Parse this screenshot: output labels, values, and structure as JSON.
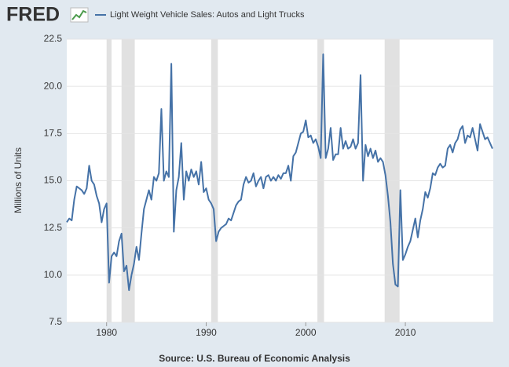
{
  "logo": "FRED",
  "chart_data": {
    "type": "line",
    "y_label": "Millions of Units",
    "source": "Source: U.S. Bureau of Economic Analysis",
    "xlim": [
      1976,
      2018.83
    ],
    "xticks": [
      1980,
      1990,
      2000,
      2010
    ],
    "ylim": [
      7.5,
      22.5
    ],
    "yticks": [
      {
        "value": 7.5,
        "label": "7.5"
      },
      {
        "value": 10,
        "label": "10.0"
      },
      {
        "value": 12.5,
        "label": "12.5"
      },
      {
        "value": 15,
        "label": "15.0"
      },
      {
        "value": 17.5,
        "label": "17.5"
      },
      {
        "value": 20,
        "label": "20.0"
      },
      {
        "value": 22.5,
        "label": "22.5"
      }
    ],
    "grid": true,
    "recessions": [
      [
        1980.0,
        1980.5
      ],
      [
        1981.5,
        1982.83
      ],
      [
        1990.5,
        1991.17
      ],
      [
        2001.17,
        2001.83
      ],
      [
        2007.92,
        2009.42
      ]
    ],
    "x": [
      1976,
      1976.25,
      1976.5,
      1976.75,
      1977,
      1977.25,
      1977.5,
      1977.75,
      1978,
      1978.25,
      1978.5,
      1978.75,
      1979,
      1979.25,
      1979.5,
      1979.75,
      1980,
      1980.25,
      1980.5,
      1980.75,
      1981,
      1981.25,
      1981.5,
      1981.75,
      1982,
      1982.25,
      1982.5,
      1982.75,
      1983,
      1983.25,
      1983.5,
      1983.75,
      1984,
      1984.25,
      1984.5,
      1984.75,
      1985,
      1985.25,
      1985.5,
      1985.75,
      1986,
      1986.25,
      1986.5,
      1986.75,
      1987,
      1987.25,
      1987.5,
      1987.75,
      1988,
      1988.25,
      1988.5,
      1988.75,
      1989,
      1989.25,
      1989.5,
      1989.75,
      1990,
      1990.25,
      1990.5,
      1990.75,
      1991,
      1991.25,
      1991.5,
      1991.75,
      1992,
      1992.25,
      1992.5,
      1992.75,
      1993,
      1993.25,
      1993.5,
      1993.75,
      1994,
      1994.25,
      1994.5,
      1994.75,
      1995,
      1995.25,
      1995.5,
      1995.75,
      1996,
      1996.25,
      1996.5,
      1996.75,
      1997,
      1997.25,
      1997.5,
      1997.75,
      1998,
      1998.25,
      1998.5,
      1998.75,
      1999,
      1999.25,
      1999.5,
      1999.75,
      2000,
      2000.25,
      2000.5,
      2000.75,
      2001,
      2001.25,
      2001.5,
      2001.75,
      2002,
      2002.25,
      2002.5,
      2002.75,
      2003,
      2003.25,
      2003.5,
      2003.75,
      2004,
      2004.25,
      2004.5,
      2004.75,
      2005,
      2005.25,
      2005.5,
      2005.75,
      2006,
      2006.25,
      2006.5,
      2006.75,
      2007,
      2007.25,
      2007.5,
      2007.75,
      2008,
      2008.25,
      2008.5,
      2008.75,
      2009,
      2009.25,
      2009.5,
      2009.75,
      2010,
      2010.25,
      2010.5,
      2010.75,
      2011,
      2011.25,
      2011.5,
      2011.75,
      2012,
      2012.25,
      2012.5,
      2012.75,
      2013,
      2013.25,
      2013.5,
      2013.75,
      2014,
      2014.25,
      2014.5,
      2014.75,
      2015,
      2015.25,
      2015.5,
      2015.75,
      2016,
      2016.25,
      2016.5,
      2016.75,
      2017,
      2017.25,
      2017.5,
      2017.75,
      2018,
      2018.25,
      2018.5,
      2018.75
    ],
    "series": [
      {
        "name": "Light Weight Vehicle Sales: Autos and Light Trucks",
        "color": "#4572a7",
        "values": [
          12.8,
          13.0,
          12.9,
          14.0,
          14.7,
          14.6,
          14.5,
          14.3,
          14.6,
          15.8,
          15.0,
          14.8,
          14.2,
          13.8,
          12.8,
          13.5,
          13.8,
          9.6,
          11.0,
          11.2,
          11.0,
          11.8,
          12.2,
          10.2,
          10.5,
          9.2,
          10.0,
          10.6,
          11.5,
          10.8,
          12.2,
          13.5,
          14.0,
          14.5,
          14.0,
          15.2,
          15.0,
          15.4,
          18.8,
          15.0,
          15.5,
          15.2,
          21.2,
          12.3,
          14.5,
          15.2,
          17.0,
          14.0,
          15.5,
          15.0,
          15.6,
          15.2,
          15.5,
          14.8,
          16.0,
          14.4,
          14.6,
          14.0,
          13.8,
          13.5,
          11.8,
          12.3,
          12.5,
          12.6,
          12.7,
          13.0,
          12.9,
          13.3,
          13.7,
          13.9,
          14.0,
          14.8,
          15.2,
          14.9,
          15.0,
          15.4,
          14.7,
          15.0,
          15.2,
          14.6,
          15.2,
          15.3,
          15.0,
          15.2,
          15.0,
          15.3,
          15.1,
          15.4,
          15.4,
          15.8,
          15.0,
          16.3,
          16.5,
          17.0,
          17.5,
          17.6,
          18.2,
          17.3,
          17.4,
          17.0,
          17.2,
          16.8,
          16.2,
          21.7,
          16.2,
          16.7,
          17.8,
          16.1,
          16.4,
          16.4,
          17.8,
          16.7,
          17.1,
          16.7,
          16.8,
          17.2,
          16.7,
          17.0,
          20.6,
          15.0,
          16.9,
          16.3,
          16.7,
          16.2,
          16.6,
          16.0,
          16.2,
          16.0,
          15.3,
          14.2,
          12.8,
          10.6,
          9.5,
          9.4,
          14.5,
          10.8,
          11.1,
          11.5,
          11.8,
          12.4,
          13.0,
          12.0,
          12.9,
          13.5,
          14.4,
          14.1,
          14.6,
          15.4,
          15.3,
          15.7,
          15.9,
          15.7,
          15.8,
          16.7,
          16.9,
          16.5,
          17.0,
          17.2,
          17.7,
          17.9,
          17.0,
          17.4,
          17.3,
          17.8,
          17.2,
          16.6,
          18.0,
          17.6,
          17.2,
          17.3,
          17.0,
          16.7
        ]
      }
    ]
  }
}
